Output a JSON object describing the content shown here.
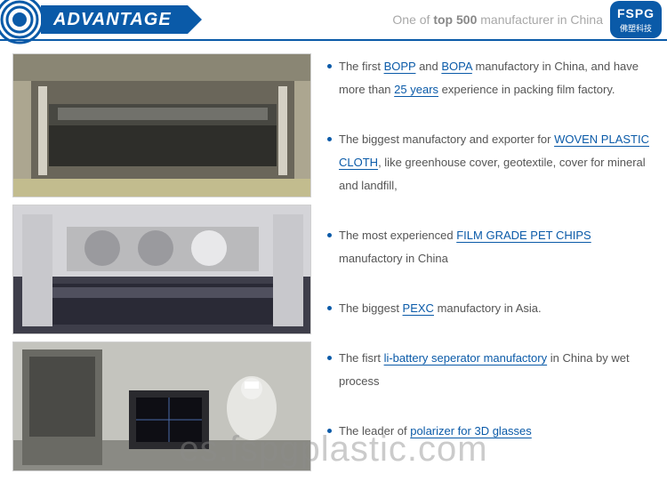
{
  "header": {
    "title": "ADVANTAGE",
    "tagline_prefix": "One of ",
    "tagline_bold": "top 500",
    "tagline_suffix": " manufacturer in China",
    "brand_en": "FSPG",
    "brand_cn": "佛塑科技",
    "accent_color": "#0a5aa8"
  },
  "bullets": [
    {
      "parts": [
        {
          "t": "The first ",
          "link": false
        },
        {
          "t": "BOPP",
          "link": true
        },
        {
          "t": " and ",
          "link": false
        },
        {
          "t": "BOPA",
          "link": true
        },
        {
          "t": " manufactory in China, and have more than ",
          "link": false
        },
        {
          "t": "25 years",
          "link": true
        },
        {
          "t": " experience in packing film factory.",
          "link": false
        }
      ]
    },
    {
      "parts": [
        {
          "t": "The biggest manufactory and exporter for ",
          "link": false
        },
        {
          "t": "WOVEN PLASTIC CLOTH",
          "link": true
        },
        {
          "t": ", like greenhouse cover, geotextile, cover for mineral and landfill,",
          "link": false
        }
      ]
    },
    {
      "parts": [
        {
          "t": "The most experienced ",
          "link": false
        },
        {
          "t": "FILM GRADE PET CHIPS",
          "link": true
        },
        {
          "t": " manufactory in China",
          "link": false
        }
      ]
    },
    {
      "parts": [
        {
          "t": "The biggest ",
          "link": false
        },
        {
          "t": "PEXC",
          "link": true
        },
        {
          "t": " manufactory in Asia.",
          "link": false
        }
      ]
    },
    {
      "parts": [
        {
          "t": "The fisrt ",
          "link": false
        },
        {
          "t": "li-battery seperator manufactory",
          "link": true
        },
        {
          "t": " in China by wet process",
          "link": false
        }
      ]
    },
    {
      "parts": [
        {
          "t": "The leader of ",
          "link": false
        },
        {
          "t": "polarizer for 3D glasses",
          "link": true
        }
      ]
    }
  ],
  "watermark": "es.fspgplastic.com",
  "photos": {
    "p1_colors": [
      "#9a9488",
      "#3a3a34",
      "#c8c29a",
      "#5a5648"
    ],
    "p2_colors": [
      "#d8d8d8",
      "#3a3a46",
      "#8a8a94",
      "#48485a"
    ],
    "p3_colors": [
      "#b8b8b4",
      "#4a4a48",
      "#e8e8e4",
      "#2a2a2e"
    ]
  }
}
